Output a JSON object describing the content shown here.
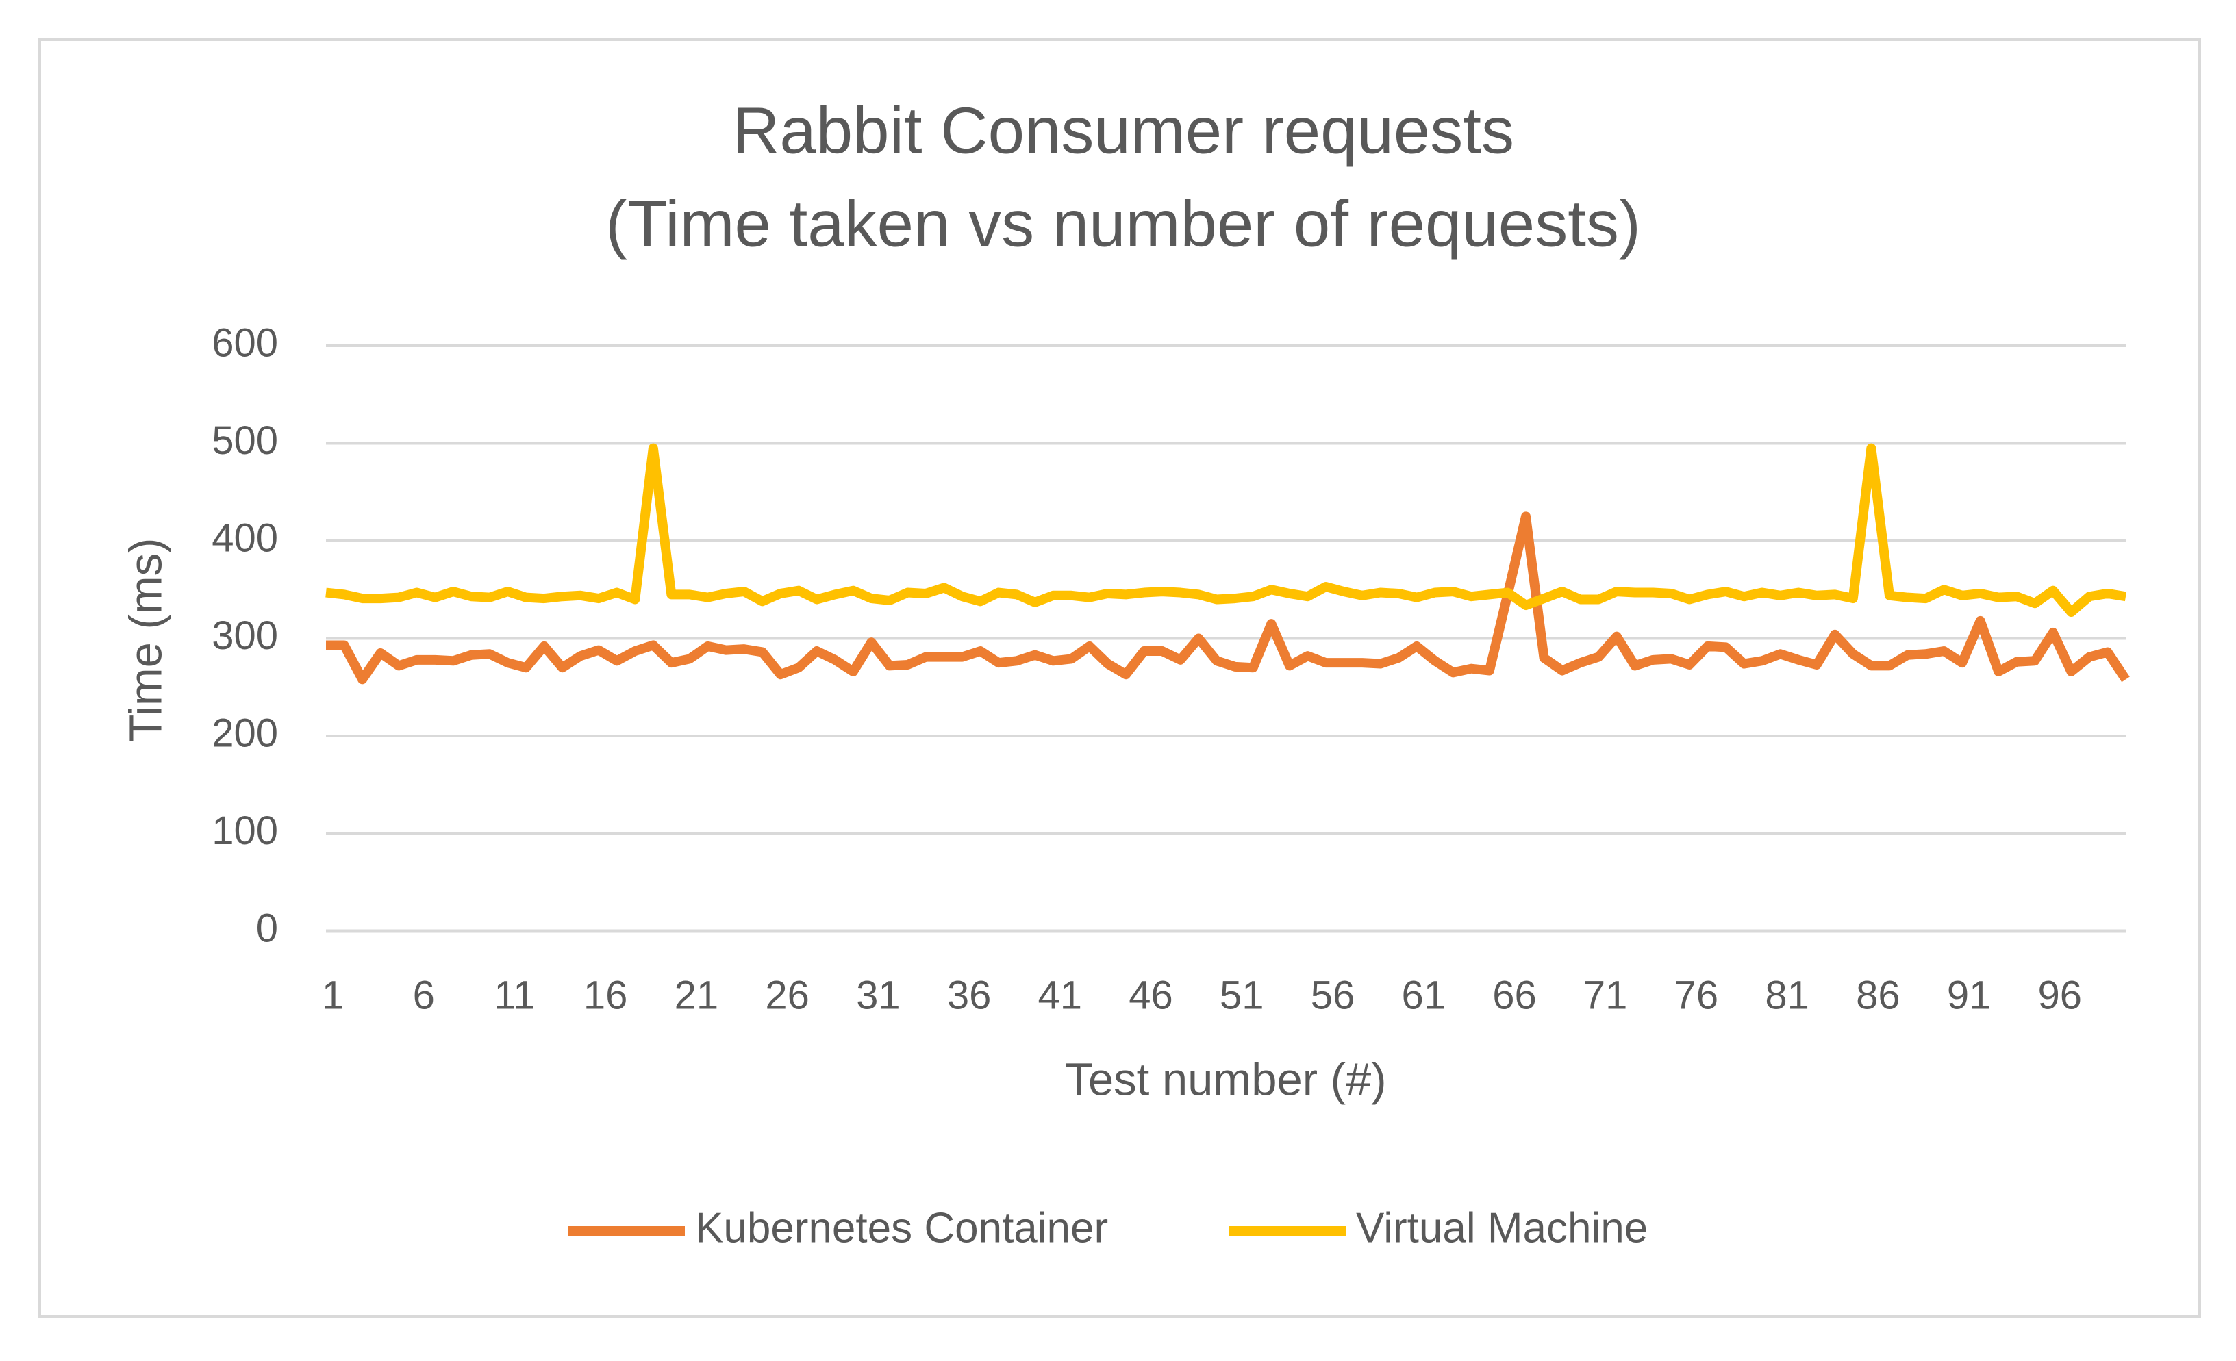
{
  "chart_data": {
    "type": "line",
    "title": "Rabbit Consumer requests",
    "subtitle": "(Time taken vs number of requests)",
    "x_label": "Test number (#)",
    "y_label": "Time (ms)",
    "categories": [
      "1",
      null,
      null,
      null,
      null,
      "6",
      null,
      null,
      null,
      null,
      "11",
      null,
      null,
      null,
      null,
      "16",
      null,
      null,
      null,
      null,
      "21",
      null,
      null,
      null,
      null,
      "26",
      null,
      null,
      null,
      null,
      "31",
      null,
      null,
      null,
      null,
      "36",
      null,
      null,
      null,
      null,
      "41",
      null,
      null,
      null,
      null,
      "46",
      null,
      null,
      null,
      null,
      "51",
      null,
      null,
      null,
      null,
      "56",
      null,
      null,
      null,
      null,
      "61",
      null,
      null,
      null,
      null,
      "66",
      null,
      null,
      null,
      null,
      "71",
      null,
      null,
      null,
      null,
      "76",
      null,
      null,
      null,
      null,
      "81",
      null,
      null,
      null,
      null,
      "86",
      null,
      null,
      null,
      null,
      "91",
      null,
      null,
      null,
      null,
      "96",
      null,
      null,
      null,
      null
    ],
    "series": [
      {
        "name": "Kubernetes Container",
        "color": "#ed7d31",
        "values": [
          293,
          293,
          258,
          285,
          272,
          278,
          278,
          277,
          283,
          284,
          275,
          270,
          292,
          270,
          282,
          288,
          277,
          287,
          293,
          275,
          279,
          292,
          288,
          289,
          286,
          263,
          270,
          287,
          278,
          266,
          296,
          272,
          273,
          281,
          281,
          281,
          287,
          275,
          277,
          283,
          277,
          279,
          292,
          274,
          263,
          287,
          287,
          278,
          300,
          277,
          271,
          270,
          315,
          272,
          282,
          275,
          275,
          275,
          274,
          280,
          292,
          277,
          265,
          269,
          267,
          345,
          425,
          280,
          267,
          275,
          281,
          302,
          272,
          278,
          279,
          273,
          292,
          291,
          274,
          277,
          284,
          278,
          273,
          304,
          284,
          272,
          272,
          283,
          284,
          287,
          275,
          318,
          266,
          276,
          277,
          306,
          266,
          281,
          286,
          258
        ]
      },
      {
        "name": "Virtual Machine",
        "color": "#ffc000",
        "values": [
          347,
          345,
          341,
          341,
          342,
          347,
          342,
          348,
          343,
          342,
          348,
          342,
          341,
          343,
          344,
          341,
          347,
          340,
          495,
          345,
          345,
          342,
          346,
          348,
          338,
          346,
          349,
          340,
          345,
          349,
          341,
          339,
          347,
          346,
          352,
          343,
          338,
          347,
          345,
          337,
          344,
          344,
          342,
          346,
          345,
          347,
          348,
          347,
          345,
          340,
          341,
          343,
          350,
          346,
          343,
          353,
          348,
          344,
          347,
          346,
          342,
          347,
          348,
          343,
          345,
          347,
          334,
          341,
          348,
          340,
          340,
          348,
          347,
          347,
          346,
          340,
          345,
          348,
          343,
          347,
          344,
          347,
          344,
          345,
          341,
          495,
          344,
          342,
          341,
          350,
          344,
          346,
          342,
          343,
          336,
          349,
          327,
          343,
          346,
          343
        ]
      }
    ],
    "ylim": [
      0,
      600
    ],
    "yticks": [
      0,
      100,
      200,
      300,
      400,
      500,
      600
    ],
    "grid": true,
    "legend": "bottom"
  }
}
